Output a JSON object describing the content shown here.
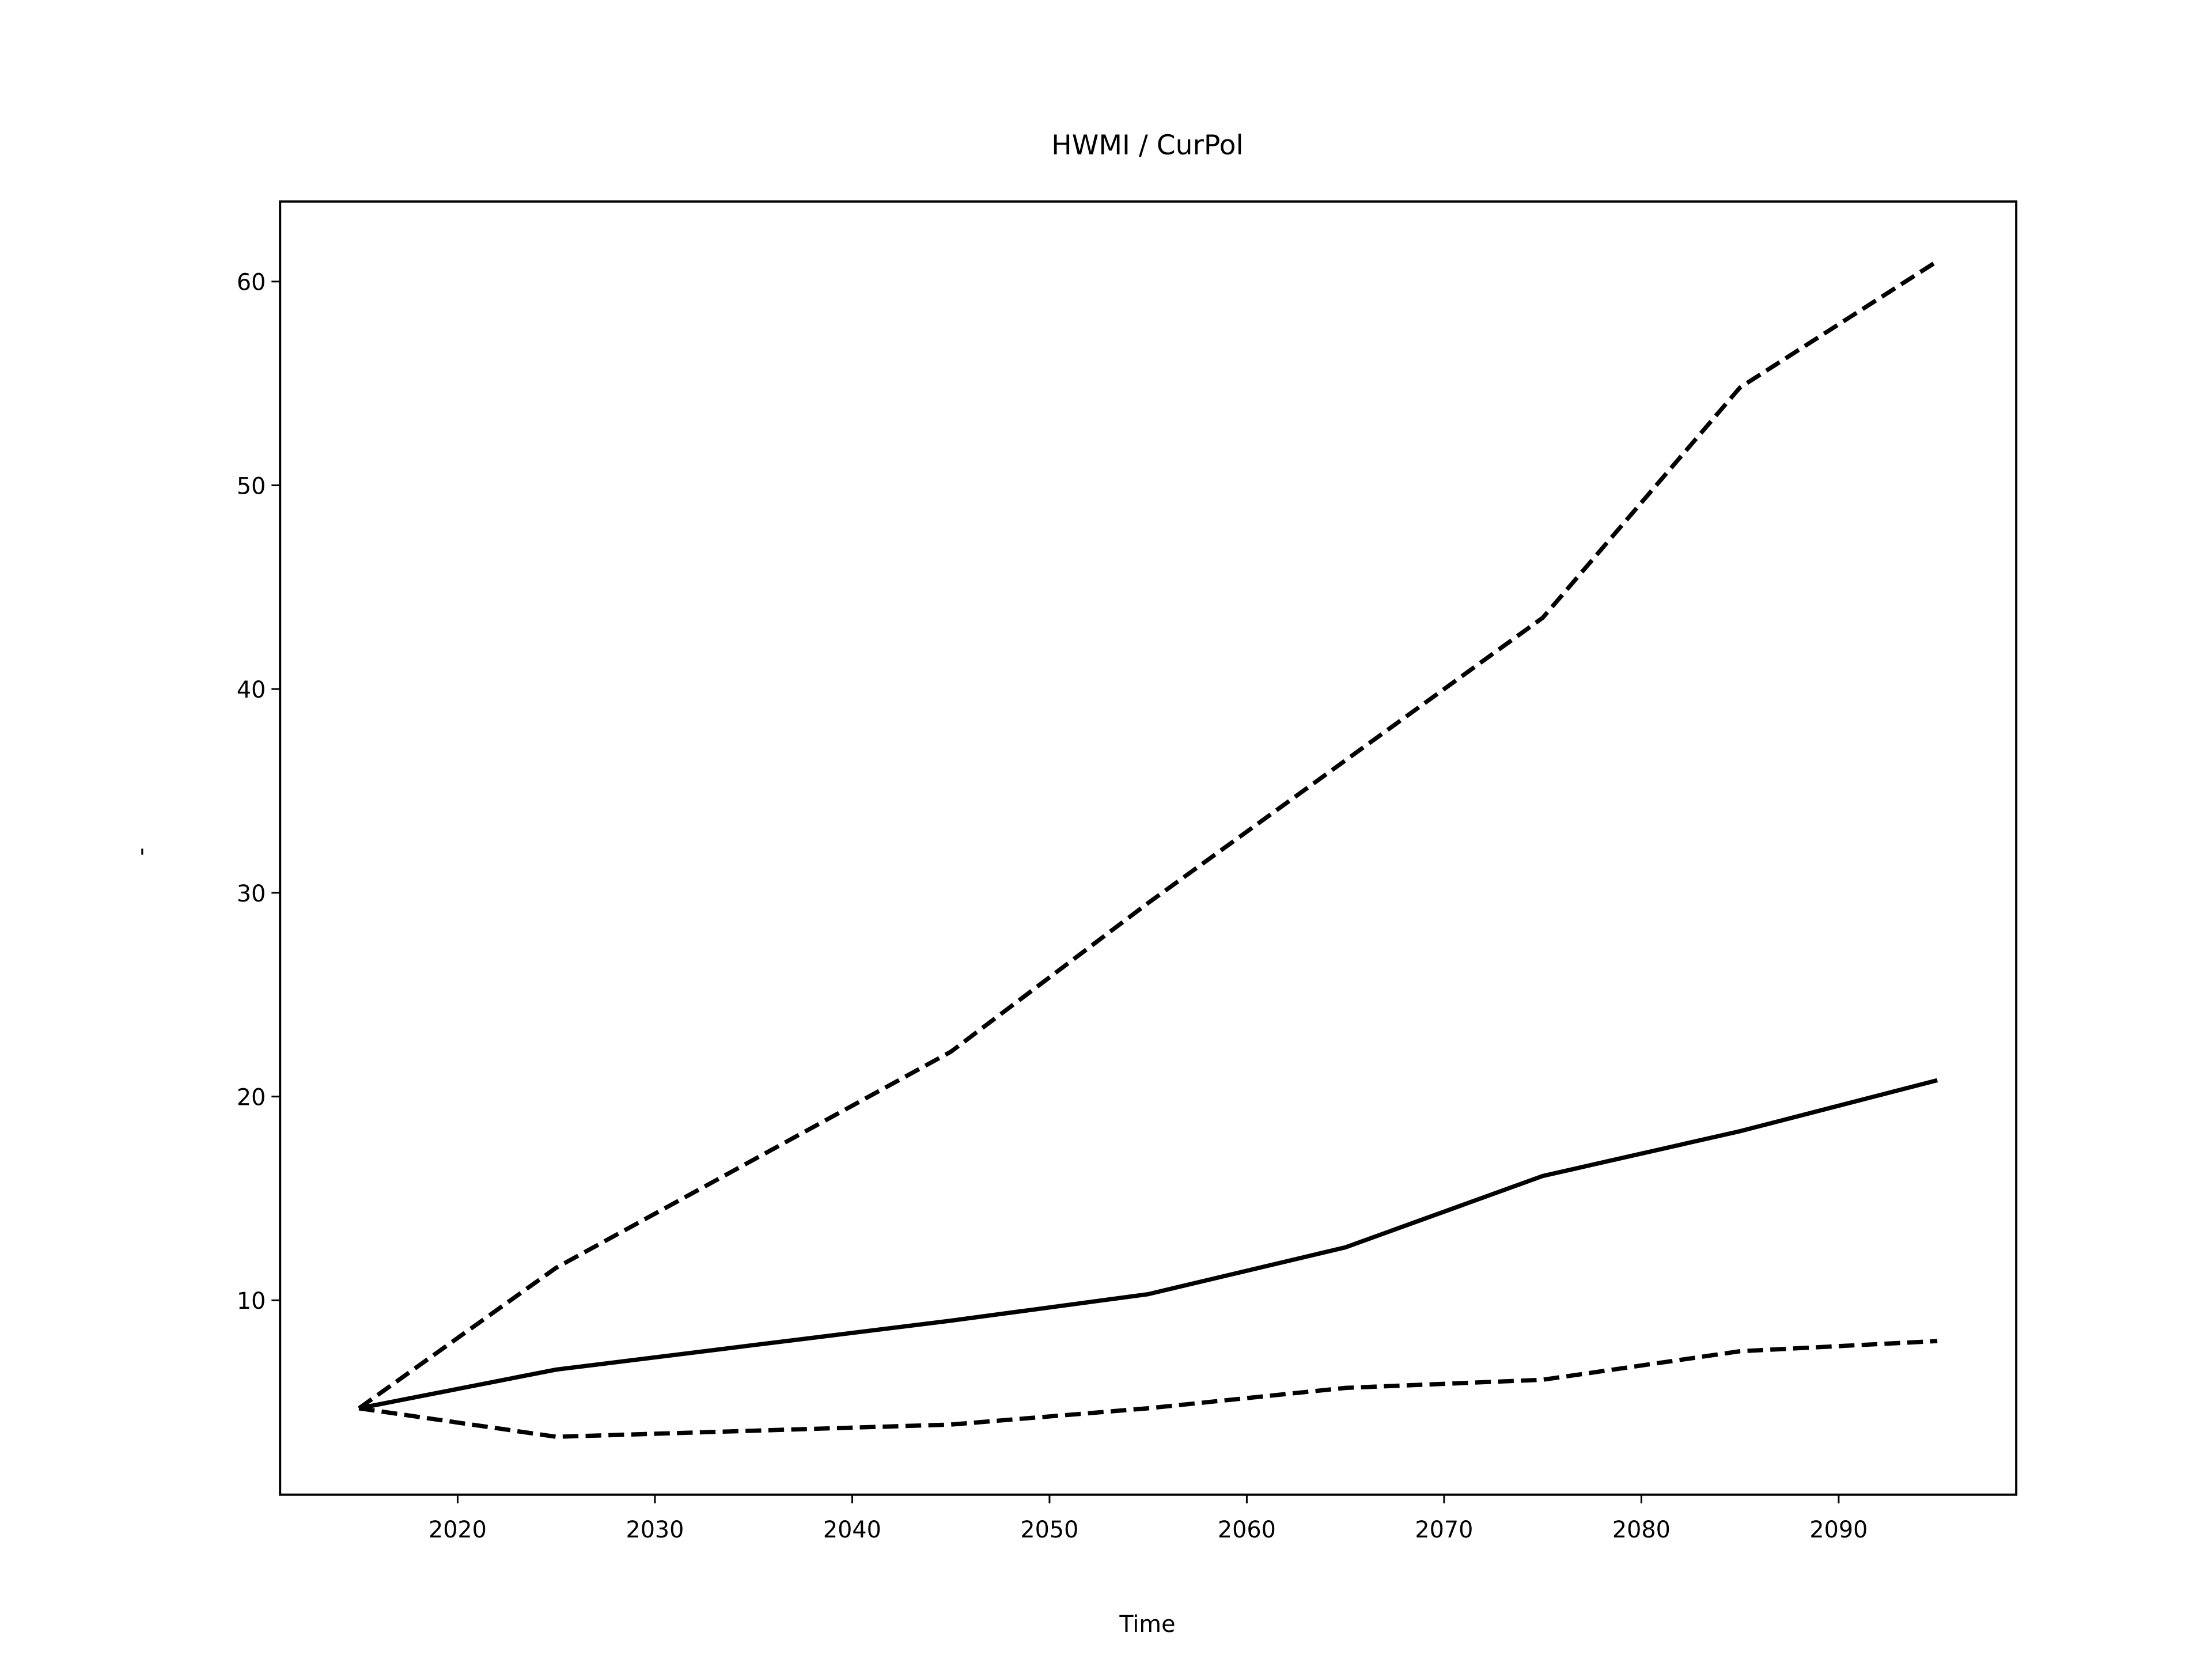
{
  "chart_data": {
    "type": "line",
    "title": "HWMI / CurPol",
    "xlabel": "Time",
    "ylabel": "-",
    "x": [
      2015,
      2025,
      2035,
      2045,
      2055,
      2065,
      2075,
      2085,
      2095
    ],
    "series": [
      {
        "color": "#000000",
        "dash": "solid",
        "values": [
          4.7,
          6.6,
          7.8,
          9.0,
          10.3,
          12.6,
          16.1,
          18.3,
          20.8
        ]
      },
      {
        "color": "#000000",
        "dash": "dashed",
        "values": [
          4.7,
          11.6,
          16.9,
          22.2,
          29.5,
          36.5,
          43.5,
          54.8,
          61.0
        ]
      },
      {
        "color": "#000000",
        "dash": "dashed",
        "values": [
          4.7,
          3.3,
          3.6,
          3.9,
          4.7,
          5.7,
          6.1,
          7.5,
          8.0
        ]
      }
    ],
    "xlim": [
      2011,
      2099
    ],
    "xticks": [
      2020,
      2030,
      2040,
      2050,
      2060,
      2070,
      2080,
      2090
    ],
    "ylim": [
      0.46,
      63.93
    ],
    "yticks": [
      10,
      20,
      30,
      40,
      50,
      60
    ],
    "grid": false
  }
}
